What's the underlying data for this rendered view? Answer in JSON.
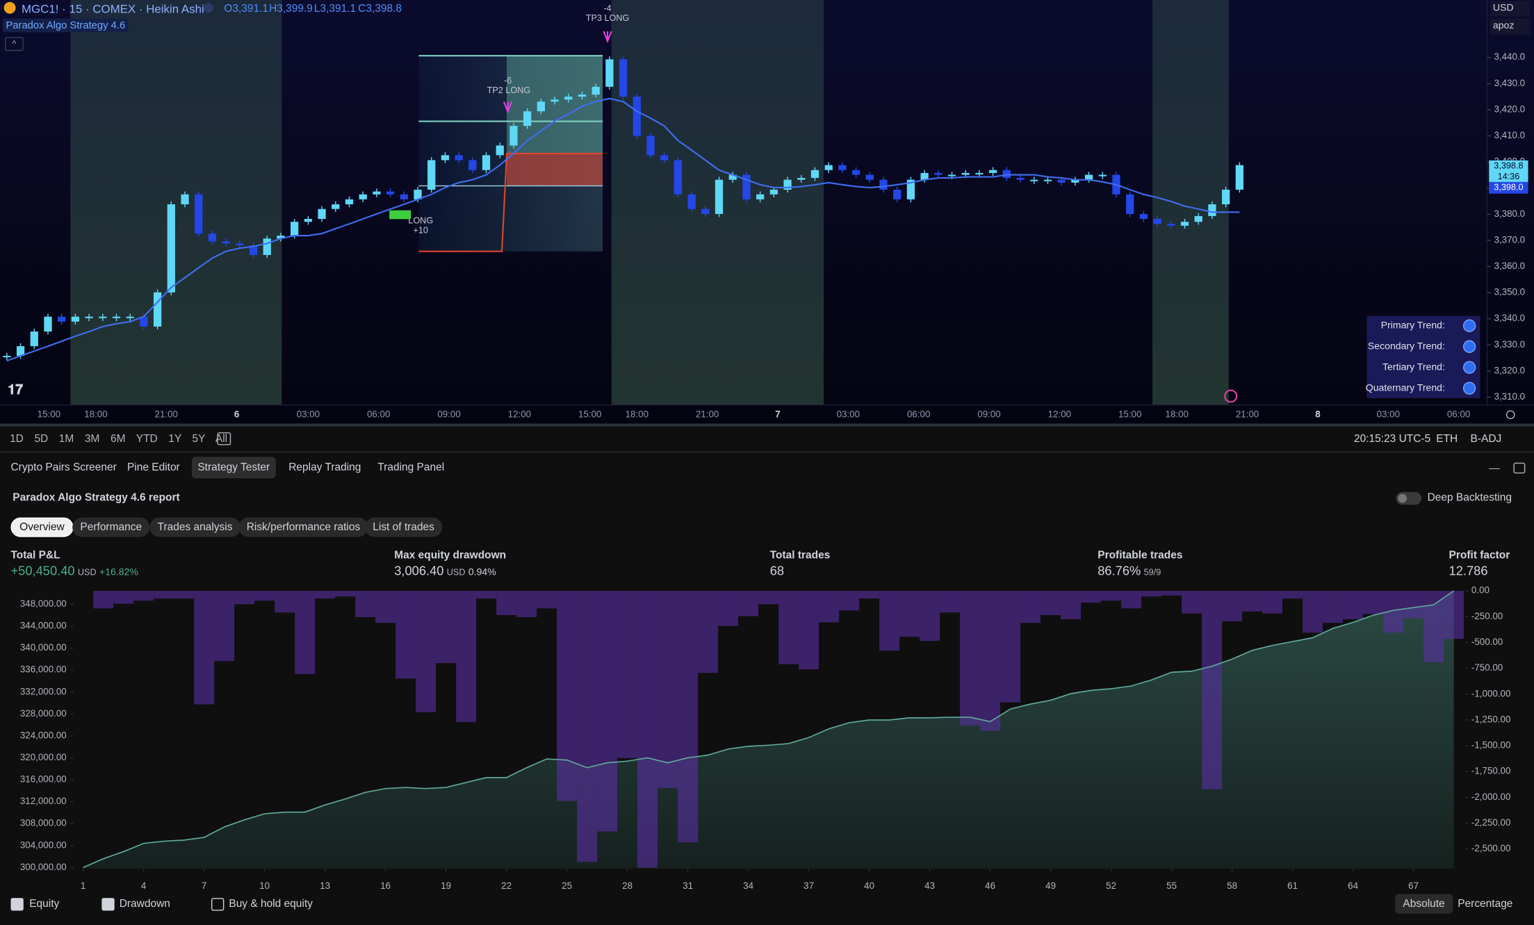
{
  "header": {
    "symbol": "MGC1! · 15 · COMEX · Heikin Ashi",
    "ohlc": [
      "O3,391.1",
      "H3,399.9",
      "L3,391.1",
      "C3,398.8"
    ],
    "indicator": "Paradox Algo Strategy 4.6",
    "currency": "USD",
    "account": "apoz"
  },
  "chart_data": [
    {
      "type": "candlestick",
      "x_labels": [
        "15:00",
        "18:00",
        "21:00",
        "6",
        "03:00",
        "06:00",
        "09:00",
        "12:00",
        "15:00",
        "18:00",
        "21:00",
        "7",
        "03:00",
        "06:00",
        "09:00",
        "12:00",
        "15:00",
        "18:00",
        "21:00",
        "8",
        "03:00",
        "06:00"
      ],
      "values": [
        3325.8,
        3329.5,
        3335.1,
        3340.8,
        3338.9,
        3340.8,
        3340.8,
        3340.8,
        3340.8,
        3340.8,
        3337.0,
        3350.1,
        3383.8,
        3387.6,
        3372.6,
        3369.6,
        3368.8,
        3368.1,
        3364.4,
        3370.7,
        3371.8,
        3377.1,
        3378.2,
        3382.0,
        3383.8,
        3385.7,
        3387.6,
        3388.7,
        3387.6,
        3385.7,
        3389.4,
        3400.7,
        3402.6,
        3400.7,
        3396.9,
        3402.6,
        3406.3,
        3413.8,
        3419.4,
        3423.1,
        3423.9,
        3425.0,
        3425.8,
        3428.8,
        3439.3,
        3425.0,
        3410.0,
        3402.6,
        3400.7,
        3387.6,
        3382.0,
        3380.1,
        3393.2,
        3395.1,
        3385.7,
        3387.6,
        3389.4,
        3393.2,
        3393.9,
        3396.9,
        3398.8,
        3396.9,
        3395.1,
        3393.2,
        3389.4,
        3385.7,
        3393.2,
        3395.8,
        3395.1,
        3395.1,
        3395.8,
        3395.8,
        3396.9,
        3393.9,
        3393.2,
        3393.2,
        3393.2,
        3392.1,
        3393.2,
        3395.1,
        3395.1,
        3387.6,
        3380.1,
        3378.2,
        3376.3,
        3375.6,
        3377.1,
        3379.3,
        3383.8,
        3389.4,
        3398.8
      ],
      "ma_values": [
        3323.9,
        3325.8,
        3327.6,
        3329.5,
        3331.4,
        3333.3,
        3335.1,
        3337.0,
        3338.1,
        3338.9,
        3340.8,
        3346.4,
        3352.0,
        3355.7,
        3359.5,
        3363.2,
        3365.8,
        3367.0,
        3367.7,
        3368.8,
        3370.7,
        3371.8,
        3371.8,
        3372.6,
        3374.5,
        3376.3,
        3378.2,
        3380.1,
        3382.0,
        3383.8,
        3385.7,
        3387.6,
        3390.2,
        3392.1,
        3393.2,
        3395.1,
        3398.8,
        3403.3,
        3408.2,
        3411.9,
        3415.7,
        3418.3,
        3421.3,
        3423.1,
        3424.3,
        3423.1,
        3419.4,
        3416.8,
        3413.8,
        3408.2,
        3404.5,
        3400.7,
        3396.9,
        3395.1,
        3393.2,
        3391.3,
        3390.2,
        3390.2,
        3390.6,
        3391.3,
        3392.1,
        3391.3,
        3390.6,
        3390.2,
        3390.6,
        3391.3,
        3392.1,
        3393.2,
        3393.9,
        3393.9,
        3394.3,
        3394.3,
        3394.3,
        3395.1,
        3395.1,
        3395.1,
        3394.3,
        3393.9,
        3393.2,
        3393.2,
        3392.4,
        3391.3,
        3389.4,
        3387.6,
        3386.4,
        3384.9,
        3383.1,
        3382.0,
        3380.8,
        3380.8,
        3380.8
      ],
      "up_color": "#5fd8f5",
      "down_color": "#2447e6",
      "ma_color": "#3f6ff0",
      "ylim": [
        3307,
        3462
      ],
      "yticks": [
        {
          "value": 3310,
          "label": "3,310.0"
        },
        {
          "value": 3320,
          "label": "3,320.0"
        },
        {
          "value": 3330,
          "label": "3,330.0"
        },
        {
          "value": 3340,
          "label": "3,340.0"
        },
        {
          "value": 3350,
          "label": "3,350.0"
        },
        {
          "value": 3360,
          "label": "3,360.0"
        },
        {
          "value": 3370,
          "label": "3,370.0"
        },
        {
          "value": 3380,
          "label": "3,380.0"
        },
        {
          "value": 3390,
          "label": "3,390.0"
        },
        {
          "value": 3400,
          "label": "3,400.0"
        },
        {
          "value": 3410,
          "label": "3,410.0"
        },
        {
          "value": 3420,
          "label": "3,420.0"
        },
        {
          "value": 3430,
          "label": "3,430.0"
        },
        {
          "value": 3440,
          "label": "3,440.0"
        }
      ],
      "price_labels": [
        "3,398.8",
        "14:36",
        "3,398.0"
      ],
      "annotations": [
        "-4",
        "TP3 LONG",
        "-6",
        "TP2 LONG",
        "LONG",
        "+10"
      ],
      "trend_table": [
        "Primary Trend:",
        "Secondary Trend:",
        "Tertiary Trend:",
        "Quaternary Trend:"
      ]
    },
    {
      "type": "bar-line",
      "series": [
        {
          "name": "Equity",
          "color": "#5fa99a",
          "values": [
            300000,
            301600,
            302900,
            304400,
            304800,
            305000,
            305500,
            307400,
            308700,
            309800,
            310100,
            310100,
            311400,
            312500,
            313700,
            314400,
            314600,
            314400,
            314600,
            315500,
            316400,
            316400,
            318200,
            319800,
            319600,
            318200,
            319100,
            319400,
            320000,
            319100,
            320000,
            320500,
            321600,
            322100,
            322300,
            322600,
            323700,
            325300,
            326400,
            326900,
            326900,
            327300,
            327300,
            327400,
            327400,
            326600,
            328900,
            329800,
            330500,
            331700,
            332300,
            332600,
            333100,
            334200,
            335600,
            335800,
            336700,
            338000,
            339600,
            340500,
            341200,
            341900,
            343600,
            344700,
            346000,
            346900,
            347400,
            347900,
            350450.4
          ]
        },
        {
          "name": "Drawdown",
          "color": "#5a2fa3",
          "axis": "y2",
          "values": [
            -170,
            -125,
            -95,
            -75,
            -75,
            -1100,
            -680,
            -130,
            -95,
            -210,
            -805,
            -75,
            -55,
            -255,
            -310,
            -850,
            -1175,
            -700,
            -1270,
            -75,
            -235,
            -255,
            -170,
            -2035,
            -2625,
            -2330,
            -1620,
            -2680,
            -1910,
            -2435,
            -795,
            -340,
            -245,
            -130,
            -710,
            -760,
            -305,
            -190,
            -75,
            -580,
            -445,
            -485,
            -210,
            -1305,
            -1355,
            -1080,
            -310,
            -235,
            -275,
            -115,
            -95,
            -170,
            -55,
            -45,
            -220,
            -1920,
            -295,
            -200,
            -220,
            -75,
            -405,
            -310,
            -275,
            -225,
            -405,
            -265,
            -690,
            -465
          ]
        }
      ],
      "extra_legend": "Buy & hold equity",
      "xlim": [
        1,
        69
      ],
      "xticks": [
        1,
        4,
        7,
        10,
        13,
        16,
        19,
        22,
        25,
        28,
        31,
        34,
        37,
        40,
        43,
        46,
        49,
        52,
        55,
        58,
        61,
        64,
        67
      ],
      "ylim": [
        299800,
        350450.4
      ],
      "yticks": [
        {
          "value": 300000,
          "label": "300,000.00"
        },
        {
          "value": 304000,
          "label": "304,000.00"
        },
        {
          "value": 308000,
          "label": "308,000.00"
        },
        {
          "value": 312000,
          "label": "312,000.00"
        },
        {
          "value": 316000,
          "label": "316,000.00"
        },
        {
          "value": 320000,
          "label": "320,000.00"
        },
        {
          "value": 324000,
          "label": "324,000.00"
        },
        {
          "value": 328000,
          "label": "328,000.00"
        },
        {
          "value": 332000,
          "label": "332,000.00"
        },
        {
          "value": 336000,
          "label": "336,000.00"
        },
        {
          "value": 340000,
          "label": "340,000.00"
        },
        {
          "value": 344000,
          "label": "344,000.00"
        },
        {
          "value": 348000,
          "label": "348,000.00"
        }
      ],
      "y2lim": [
        -2690,
        0
      ],
      "y2ticks": [
        {
          "value": 0,
          "label": "0.00"
        },
        {
          "value": -250,
          "label": "-250.00"
        },
        {
          "value": -500,
          "label": "-500.00"
        },
        {
          "value": -750,
          "label": "-750.00"
        },
        {
          "value": -1000,
          "label": "-1,000.00"
        },
        {
          "value": -1250,
          "label": "-1,250.00"
        },
        {
          "value": -1500,
          "label": "-1,500.00"
        },
        {
          "value": -1750,
          "label": "-1,750.00"
        },
        {
          "value": -2000,
          "label": "-2,000.00"
        },
        {
          "value": -2250,
          "label": "-2,250.00"
        },
        {
          "value": -2500,
          "label": "-2,500.00"
        }
      ]
    }
  ],
  "toolbar": {
    "ranges": [
      "1D",
      "5D",
      "1M",
      "3M",
      "6M",
      "YTD",
      "1Y",
      "5Y",
      "All"
    ],
    "clock": "20:15:23 UTC-5",
    "session": "ETH",
    "adjust": "B-ADJ"
  },
  "tabs": [
    "Crypto Pairs Screener",
    "Pine Editor",
    "Strategy Tester",
    "Replay Trading",
    "Trading Panel"
  ],
  "report": {
    "title": "Paradox Algo Strategy 4.6 report",
    "deep_backtesting": "Deep Backtesting",
    "subtabs": [
      "Overview",
      "Performance",
      "Trades analysis",
      "Risk/performance ratios",
      "List of trades"
    ],
    "metrics": [
      {
        "label": "Total P&L",
        "value": "+50,450.40",
        "unit": "USD",
        "extra": "+16.82%"
      },
      {
        "label": "Max equity drawdown",
        "value": "3,006.40",
        "unit": "USD",
        "extra": "0.94%"
      },
      {
        "label": "Total trades",
        "value": "68"
      },
      {
        "label": "Profitable trades",
        "value": "86.76%",
        "extra": "59/9"
      },
      {
        "label": "Profit factor",
        "value": "12.786"
      }
    ],
    "modes": [
      "Absolute",
      "Percentage"
    ]
  }
}
